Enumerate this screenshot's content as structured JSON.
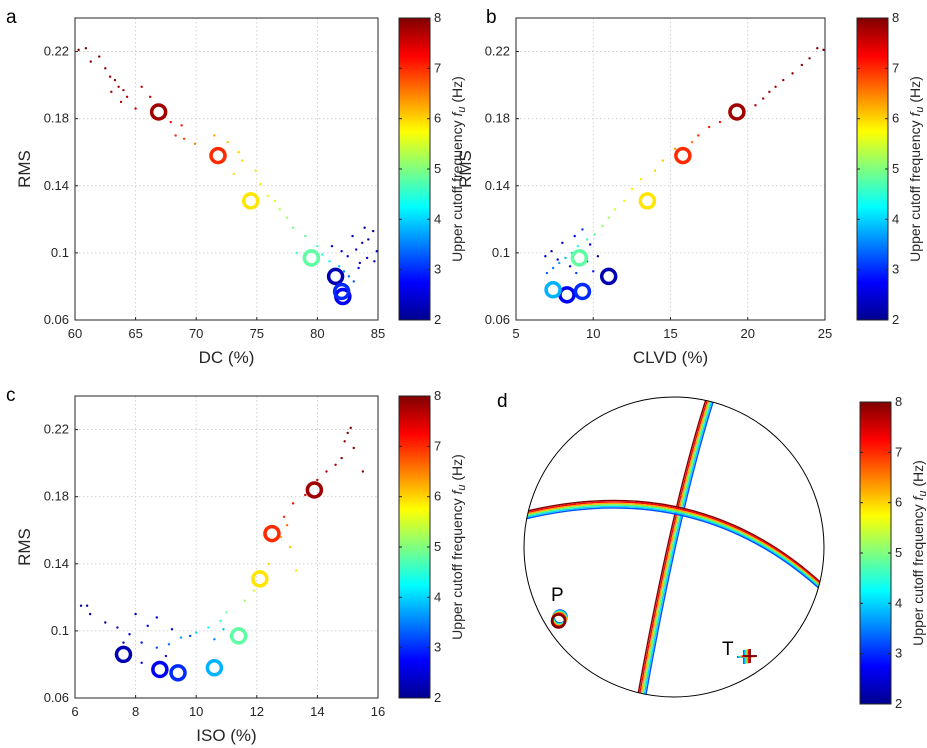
{
  "colormap": {
    "name": "jet",
    "stops": [
      "#00008f",
      "#0000ff",
      "#00ffff",
      "#ffff00",
      "#ff0000",
      "#800000"
    ]
  },
  "colorbar": {
    "label": "Upper cutoff frequency",
    "symbol_f": "f",
    "symbol_sub": "u",
    "unit": "(Hz)",
    "ticks": [
      2,
      3,
      4,
      5,
      6,
      7,
      8
    ],
    "range": [
      2,
      8
    ]
  },
  "chart_data": [
    {
      "type": "scatter",
      "panel": "a",
      "xlabel": "DC (%)",
      "ylabel": "RMS",
      "xlim": [
        60,
        85
      ],
      "ylim": [
        0.06,
        0.24
      ],
      "xticks": [
        60,
        65,
        70,
        75,
        80,
        85
      ],
      "yticks": [
        0.06,
        0.1,
        0.14,
        0.18,
        0.22
      ],
      "grid": true,
      "series": [
        {
          "marker": "circle",
          "values": [
            {
              "x": 66.9,
              "y": 0.184,
              "f": 7.8
            },
            {
              "x": 71.8,
              "y": 0.158,
              "f": 7.0
            },
            {
              "x": 74.5,
              "y": 0.131,
              "f": 5.9
            },
            {
              "x": 79.5,
              "y": 0.097,
              "f": 4.8
            },
            {
              "x": 81.5,
              "y": 0.086,
              "f": 2.3
            },
            {
              "x": 82.0,
              "y": 0.077,
              "f": 3.0
            },
            {
              "x": 82.1,
              "y": 0.074,
              "f": 2.7
            }
          ]
        },
        {
          "marker": "dot",
          "values": [
            {
              "x": 60.3,
              "y": 0.221,
              "f": 8.0
            },
            {
              "x": 60.9,
              "y": 0.222,
              "f": 8.0
            },
            {
              "x": 61.3,
              "y": 0.214,
              "f": 7.9
            },
            {
              "x": 62.0,
              "y": 0.217,
              "f": 7.9
            },
            {
              "x": 62.5,
              "y": 0.21,
              "f": 7.9
            },
            {
              "x": 62.9,
              "y": 0.205,
              "f": 7.9
            },
            {
              "x": 63.3,
              "y": 0.203,
              "f": 7.8
            },
            {
              "x": 63.6,
              "y": 0.199,
              "f": 7.8
            },
            {
              "x": 63.0,
              "y": 0.196,
              "f": 7.8
            },
            {
              "x": 64.0,
              "y": 0.197,
              "f": 7.7
            },
            {
              "x": 64.3,
              "y": 0.193,
              "f": 7.7
            },
            {
              "x": 63.8,
              "y": 0.19,
              "f": 7.7
            },
            {
              "x": 65.5,
              "y": 0.199,
              "f": 7.6
            },
            {
              "x": 66.2,
              "y": 0.193,
              "f": 7.5
            },
            {
              "x": 65.0,
              "y": 0.186,
              "f": 7.5
            },
            {
              "x": 67.4,
              "y": 0.181,
              "f": 7.3
            },
            {
              "x": 67.9,
              "y": 0.178,
              "f": 7.2
            },
            {
              "x": 68.8,
              "y": 0.176,
              "f": 7.1
            },
            {
              "x": 68.3,
              "y": 0.17,
              "f": 7.0
            },
            {
              "x": 69.0,
              "y": 0.168,
              "f": 6.9
            },
            {
              "x": 69.9,
              "y": 0.165,
              "f": 6.5
            },
            {
              "x": 71.5,
              "y": 0.17,
              "f": 6.3
            },
            {
              "x": 72.6,
              "y": 0.166,
              "f": 6.1
            },
            {
              "x": 73.5,
              "y": 0.16,
              "f": 6.0
            },
            {
              "x": 73.8,
              "y": 0.155,
              "f": 6.0
            },
            {
              "x": 73.1,
              "y": 0.147,
              "f": 5.9
            },
            {
              "x": 74.9,
              "y": 0.149,
              "f": 5.9
            },
            {
              "x": 75.3,
              "y": 0.141,
              "f": 5.8
            },
            {
              "x": 75.9,
              "y": 0.134,
              "f": 5.6
            },
            {
              "x": 76.5,
              "y": 0.131,
              "f": 5.5
            },
            {
              "x": 76.9,
              "y": 0.126,
              "f": 5.3
            },
            {
              "x": 77.5,
              "y": 0.121,
              "f": 5.1
            },
            {
              "x": 78.0,
              "y": 0.115,
              "f": 5.0
            },
            {
              "x": 79.0,
              "y": 0.11,
              "f": 4.8
            },
            {
              "x": 80.0,
              "y": 0.104,
              "f": 4.6
            },
            {
              "x": 80.4,
              "y": 0.099,
              "f": 4.4
            },
            {
              "x": 78.3,
              "y": 0.1,
              "f": 4.6
            },
            {
              "x": 81.0,
              "y": 0.095,
              "f": 4.2
            },
            {
              "x": 81.8,
              "y": 0.092,
              "f": 3.9
            },
            {
              "x": 82.2,
              "y": 0.089,
              "f": 3.6
            },
            {
              "x": 82.6,
              "y": 0.086,
              "f": 3.4
            },
            {
              "x": 83.0,
              "y": 0.083,
              "f": 3.2
            },
            {
              "x": 82.5,
              "y": 0.098,
              "f": 2.6
            },
            {
              "x": 83.2,
              "y": 0.102,
              "f": 2.5
            },
            {
              "x": 83.7,
              "y": 0.106,
              "f": 2.4
            },
            {
              "x": 84.2,
              "y": 0.108,
              "f": 2.3
            },
            {
              "x": 84.6,
              "y": 0.113,
              "f": 2.2
            },
            {
              "x": 84.9,
              "y": 0.101,
              "f": 2.3
            },
            {
              "x": 83.5,
              "y": 0.094,
              "f": 2.6
            },
            {
              "x": 84.1,
              "y": 0.097,
              "f": 2.4
            },
            {
              "x": 82.9,
              "y": 0.11,
              "f": 2.3
            },
            {
              "x": 81.2,
              "y": 0.104,
              "f": 2.5
            },
            {
              "x": 83.9,
              "y": 0.115,
              "f": 2.2
            },
            {
              "x": 84.7,
              "y": 0.095,
              "f": 2.5
            },
            {
              "x": 82.0,
              "y": 0.101,
              "f": 2.6
            },
            {
              "x": 83.4,
              "y": 0.091,
              "f": 2.8
            }
          ]
        }
      ]
    },
    {
      "type": "scatter",
      "panel": "b",
      "xlabel": "CLVD (%)",
      "ylabel": "RMS",
      "xlim": [
        5,
        25
      ],
      "ylim": [
        0.06,
        0.24
      ],
      "xticks": [
        5,
        10,
        15,
        20,
        25
      ],
      "yticks": [
        0.06,
        0.1,
        0.14,
        0.18,
        0.22
      ],
      "grid": true,
      "series": [
        {
          "marker": "circle",
          "values": [
            {
              "x": 19.3,
              "y": 0.184,
              "f": 7.8
            },
            {
              "x": 15.8,
              "y": 0.158,
              "f": 7.0
            },
            {
              "x": 13.5,
              "y": 0.131,
              "f": 5.9
            },
            {
              "x": 9.1,
              "y": 0.097,
              "f": 4.8
            },
            {
              "x": 11.0,
              "y": 0.086,
              "f": 2.3
            },
            {
              "x": 7.4,
              "y": 0.078,
              "f": 3.8
            },
            {
              "x": 8.3,
              "y": 0.075,
              "f": 2.7
            },
            {
              "x": 9.3,
              "y": 0.077,
              "f": 3.0
            }
          ]
        },
        {
          "marker": "dot",
          "values": [
            {
              "x": 24.9,
              "y": 0.221,
              "f": 8.0
            },
            {
              "x": 24.5,
              "y": 0.222,
              "f": 8.0
            },
            {
              "x": 24.0,
              "y": 0.216,
              "f": 7.9
            },
            {
              "x": 23.5,
              "y": 0.212,
              "f": 7.9
            },
            {
              "x": 22.9,
              "y": 0.207,
              "f": 7.9
            },
            {
              "x": 22.3,
              "y": 0.203,
              "f": 7.8
            },
            {
              "x": 21.8,
              "y": 0.199,
              "f": 7.8
            },
            {
              "x": 21.4,
              "y": 0.196,
              "f": 7.8
            },
            {
              "x": 21.0,
              "y": 0.192,
              "f": 7.7
            },
            {
              "x": 20.5,
              "y": 0.188,
              "f": 7.6
            },
            {
              "x": 18.9,
              "y": 0.182,
              "f": 7.3
            },
            {
              "x": 18.2,
              "y": 0.178,
              "f": 7.2
            },
            {
              "x": 17.5,
              "y": 0.175,
              "f": 7.1
            },
            {
              "x": 16.8,
              "y": 0.17,
              "f": 7.0
            },
            {
              "x": 16.4,
              "y": 0.166,
              "f": 6.6
            },
            {
              "x": 15.3,
              "y": 0.162,
              "f": 6.3
            },
            {
              "x": 14.5,
              "y": 0.155,
              "f": 6.1
            },
            {
              "x": 14.0,
              "y": 0.149,
              "f": 6.0
            },
            {
              "x": 13.1,
              "y": 0.144,
              "f": 5.9
            },
            {
              "x": 12.5,
              "y": 0.138,
              "f": 5.8
            },
            {
              "x": 12.0,
              "y": 0.131,
              "f": 5.6
            },
            {
              "x": 11.4,
              "y": 0.126,
              "f": 5.4
            },
            {
              "x": 11.0,
              "y": 0.121,
              "f": 5.2
            },
            {
              "x": 10.6,
              "y": 0.116,
              "f": 5.1
            },
            {
              "x": 10.1,
              "y": 0.111,
              "f": 4.8
            },
            {
              "x": 9.6,
              "y": 0.108,
              "f": 4.6
            },
            {
              "x": 9.0,
              "y": 0.104,
              "f": 4.4
            },
            {
              "x": 8.6,
              "y": 0.1,
              "f": 4.1
            },
            {
              "x": 8.2,
              "y": 0.097,
              "f": 3.9
            },
            {
              "x": 7.8,
              "y": 0.094,
              "f": 3.7
            },
            {
              "x": 7.4,
              "y": 0.091,
              "f": 3.5
            },
            {
              "x": 7.0,
              "y": 0.088,
              "f": 3.3
            },
            {
              "x": 9.3,
              "y": 0.114,
              "f": 3.0
            },
            {
              "x": 8.8,
              "y": 0.11,
              "f": 2.8
            },
            {
              "x": 9.8,
              "y": 0.105,
              "f": 2.6
            },
            {
              "x": 8.0,
              "y": 0.106,
              "f": 2.5
            },
            {
              "x": 7.3,
              "y": 0.101,
              "f": 2.4
            },
            {
              "x": 7.7,
              "y": 0.096,
              "f": 2.6
            },
            {
              "x": 8.5,
              "y": 0.092,
              "f": 2.7
            },
            {
              "x": 9.6,
              "y": 0.095,
              "f": 2.5
            },
            {
              "x": 10.3,
              "y": 0.098,
              "f": 2.4
            },
            {
              "x": 6.9,
              "y": 0.098,
              "f": 2.5
            },
            {
              "x": 8.9,
              "y": 0.088,
              "f": 3.1
            },
            {
              "x": 10.0,
              "y": 0.089,
              "f": 2.9
            }
          ]
        }
      ]
    },
    {
      "type": "scatter",
      "panel": "c",
      "xlabel": "ISO (%)",
      "ylabel": "RMS",
      "xlim": [
        6,
        16
      ],
      "ylim": [
        0.06,
        0.24
      ],
      "xticks": [
        6,
        8,
        10,
        12,
        14,
        16
      ],
      "yticks": [
        0.06,
        0.1,
        0.14,
        0.18,
        0.22
      ],
      "grid": true,
      "series": [
        {
          "marker": "circle",
          "values": [
            {
              "x": 13.9,
              "y": 0.184,
              "f": 7.8
            },
            {
              "x": 12.5,
              "y": 0.158,
              "f": 7.0
            },
            {
              "x": 12.1,
              "y": 0.131,
              "f": 5.9
            },
            {
              "x": 11.4,
              "y": 0.097,
              "f": 4.8
            },
            {
              "x": 10.6,
              "y": 0.078,
              "f": 3.8
            },
            {
              "x": 9.4,
              "y": 0.075,
              "f": 3.0
            },
            {
              "x": 8.8,
              "y": 0.077,
              "f": 2.7
            },
            {
              "x": 7.6,
              "y": 0.086,
              "f": 2.3
            }
          ]
        },
        {
          "marker": "dot",
          "values": [
            {
              "x": 15.1,
              "y": 0.221,
              "f": 8.0
            },
            {
              "x": 15.0,
              "y": 0.218,
              "f": 8.0
            },
            {
              "x": 14.9,
              "y": 0.213,
              "f": 7.9
            },
            {
              "x": 15.2,
              "y": 0.209,
              "f": 7.9
            },
            {
              "x": 14.8,
              "y": 0.203,
              "f": 7.8
            },
            {
              "x": 14.6,
              "y": 0.199,
              "f": 7.8
            },
            {
              "x": 14.3,
              "y": 0.195,
              "f": 7.7
            },
            {
              "x": 15.5,
              "y": 0.195,
              "f": 7.9
            },
            {
              "x": 14.0,
              "y": 0.19,
              "f": 7.6
            },
            {
              "x": 13.6,
              "y": 0.181,
              "f": 7.4
            },
            {
              "x": 13.2,
              "y": 0.176,
              "f": 7.2
            },
            {
              "x": 12.9,
              "y": 0.168,
              "f": 7.0
            },
            {
              "x": 13.0,
              "y": 0.163,
              "f": 6.6
            },
            {
              "x": 12.8,
              "y": 0.156,
              "f": 6.3
            },
            {
              "x": 13.1,
              "y": 0.15,
              "f": 6.1
            },
            {
              "x": 12.4,
              "y": 0.14,
              "f": 6.0
            },
            {
              "x": 13.3,
              "y": 0.136,
              "f": 5.9
            },
            {
              "x": 12.2,
              "y": 0.128,
              "f": 5.7
            },
            {
              "x": 11.9,
              "y": 0.124,
              "f": 5.5
            },
            {
              "x": 11.6,
              "y": 0.118,
              "f": 5.2
            },
            {
              "x": 11.0,
              "y": 0.111,
              "f": 4.9
            },
            {
              "x": 10.8,
              "y": 0.106,
              "f": 4.6
            },
            {
              "x": 10.4,
              "y": 0.102,
              "f": 4.3
            },
            {
              "x": 10.0,
              "y": 0.099,
              "f": 4.0
            },
            {
              "x": 9.5,
              "y": 0.096,
              "f": 3.7
            },
            {
              "x": 9.1,
              "y": 0.092,
              "f": 3.4
            },
            {
              "x": 8.7,
              "y": 0.09,
              "f": 3.2
            },
            {
              "x": 8.2,
              "y": 0.093,
              "f": 2.9
            },
            {
              "x": 7.8,
              "y": 0.098,
              "f": 2.6
            },
            {
              "x": 7.4,
              "y": 0.102,
              "f": 2.4
            },
            {
              "x": 7.0,
              "y": 0.105,
              "f": 2.2
            },
            {
              "x": 6.5,
              "y": 0.11,
              "f": 2.1
            },
            {
              "x": 6.2,
              "y": 0.115,
              "f": 2.0
            },
            {
              "x": 6.4,
              "y": 0.115,
              "f": 2.0
            },
            {
              "x": 8.0,
              "y": 0.11,
              "f": 2.3
            },
            {
              "x": 8.7,
              "y": 0.108,
              "f": 2.4
            },
            {
              "x": 8.4,
              "y": 0.103,
              "f": 2.6
            },
            {
              "x": 9.2,
              "y": 0.101,
              "f": 2.8
            },
            {
              "x": 9.8,
              "y": 0.097,
              "f": 3.1
            },
            {
              "x": 10.6,
              "y": 0.095,
              "f": 3.5
            },
            {
              "x": 10.9,
              "y": 0.101,
              "f": 3.9
            },
            {
              "x": 9.0,
              "y": 0.085,
              "f": 2.7
            },
            {
              "x": 8.2,
              "y": 0.081,
              "f": 2.5
            },
            {
              "x": 7.6,
              "y": 0.093,
              "f": 2.4
            }
          ]
        }
      ]
    },
    {
      "type": "beachball",
      "panel": "d",
      "axis_labels": [
        "P",
        "T"
      ],
      "frequencies": [
        8,
        7,
        5,
        4,
        3,
        2
      ],
      "curve_colors": [
        "#800000",
        "#ff0000",
        "#ffaa00",
        "#55ff66",
        "#00d5ff",
        "#0050ff"
      ]
    }
  ],
  "panels": {
    "a": "a",
    "b": "b",
    "c": "c",
    "d": "d"
  }
}
